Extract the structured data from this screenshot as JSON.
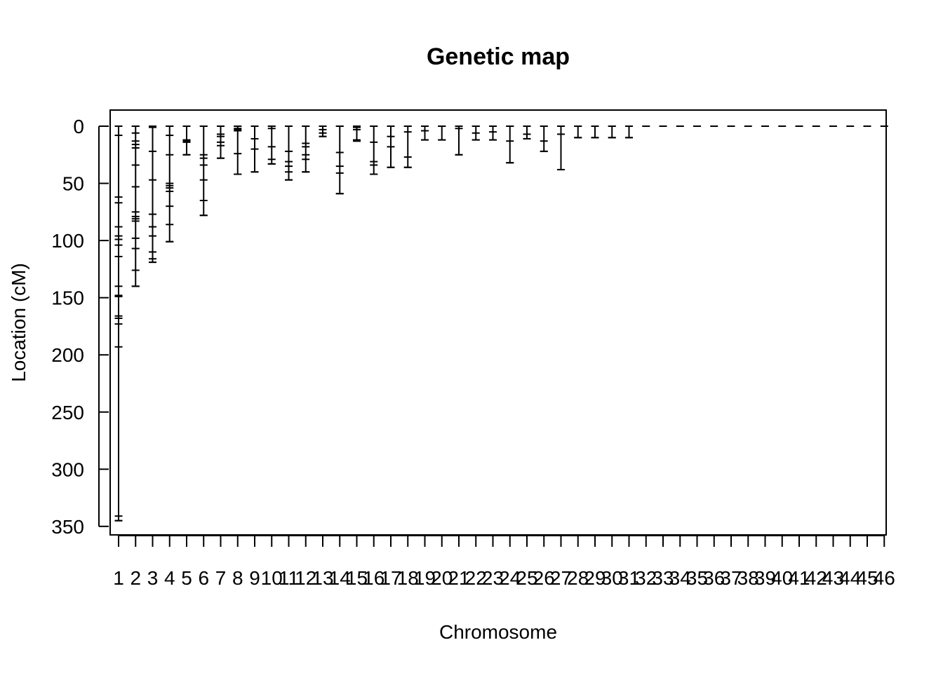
{
  "chart_data": {
    "type": "genetic-map",
    "title": "Genetic map",
    "xlabel": "Chromosome",
    "ylabel": "Location (cM)",
    "ylim": [
      0,
      360
    ],
    "y_reversed": true,
    "y_ticks": [
      0,
      50,
      100,
      150,
      200,
      250,
      300,
      350
    ],
    "chromosomes": [
      {
        "name": "1",
        "markers": [
          0,
          8,
          62,
          67,
          88,
          96,
          99,
          104,
          114,
          140,
          148,
          149,
          166,
          168,
          173,
          193,
          341,
          345
        ]
      },
      {
        "name": "2",
        "markers": [
          0,
          6,
          13,
          16,
          19,
          34,
          53,
          75,
          79,
          81,
          83,
          98,
          107,
          126,
          140
        ]
      },
      {
        "name": "3",
        "markers": [
          0,
          1,
          22,
          47,
          77,
          88,
          96,
          110,
          116,
          119
        ]
      },
      {
        "name": "4",
        "markers": [
          0,
          8,
          25,
          50,
          52,
          54,
          57,
          70,
          86,
          101
        ]
      },
      {
        "name": "5",
        "markers": [
          0,
          12,
          13,
          14,
          25
        ]
      },
      {
        "name": "6",
        "markers": [
          0,
          25,
          28,
          34,
          47,
          65,
          78
        ]
      },
      {
        "name": "7",
        "markers": [
          0,
          7,
          9,
          14,
          17,
          28
        ]
      },
      {
        "name": "8",
        "markers": [
          0,
          2,
          3,
          4,
          24,
          42
        ]
      },
      {
        "name": "9",
        "markers": [
          0,
          11,
          20,
          40
        ]
      },
      {
        "name": "10",
        "markers": [
          0,
          2,
          18,
          29,
          33
        ]
      },
      {
        "name": "11",
        "markers": [
          0,
          22,
          31,
          35,
          40,
          47
        ]
      },
      {
        "name": "12",
        "markers": [
          0,
          15,
          18,
          25,
          29,
          40
        ]
      },
      {
        "name": "13",
        "markers": [
          0,
          3,
          6,
          9
        ]
      },
      {
        "name": "14",
        "markers": [
          0,
          23,
          35,
          41,
          59
        ]
      },
      {
        "name": "15",
        "markers": [
          0,
          1,
          3,
          12,
          13
        ]
      },
      {
        "name": "16",
        "markers": [
          0,
          14,
          31,
          34,
          42
        ]
      },
      {
        "name": "17",
        "markers": [
          0,
          9,
          18,
          36
        ]
      },
      {
        "name": "18",
        "markers": [
          0,
          5,
          27,
          36
        ]
      },
      {
        "name": "19",
        "markers": [
          0,
          4,
          12
        ]
      },
      {
        "name": "20",
        "markers": [
          0,
          12
        ]
      },
      {
        "name": "21",
        "markers": [
          0,
          2,
          25
        ]
      },
      {
        "name": "22",
        "markers": [
          0,
          6,
          12
        ]
      },
      {
        "name": "23",
        "markers": [
          0,
          5,
          12
        ]
      },
      {
        "name": "24",
        "markers": [
          0,
          13,
          32
        ]
      },
      {
        "name": "25",
        "markers": [
          0,
          7,
          11
        ]
      },
      {
        "name": "26",
        "markers": [
          0,
          13,
          22
        ]
      },
      {
        "name": "27",
        "markers": [
          0,
          7,
          38
        ]
      },
      {
        "name": "28",
        "markers": [
          0,
          10
        ]
      },
      {
        "name": "29",
        "markers": [
          0,
          10
        ]
      },
      {
        "name": "30",
        "markers": [
          0,
          10
        ]
      },
      {
        "name": "31",
        "markers": [
          0,
          10
        ]
      },
      {
        "name": "32",
        "markers": [
          0
        ]
      },
      {
        "name": "33",
        "markers": [
          0
        ]
      },
      {
        "name": "34",
        "markers": [
          0
        ]
      },
      {
        "name": "35",
        "markers": [
          0
        ]
      },
      {
        "name": "36",
        "markers": [
          0
        ]
      },
      {
        "name": "37",
        "markers": [
          0
        ]
      },
      {
        "name": "38",
        "markers": [
          0
        ]
      },
      {
        "name": "39",
        "markers": [
          0
        ]
      },
      {
        "name": "40",
        "markers": [
          0
        ]
      },
      {
        "name": "41",
        "markers": [
          0
        ]
      },
      {
        "name": "42",
        "markers": [
          0
        ]
      },
      {
        "name": "43",
        "markers": [
          0
        ]
      },
      {
        "name": "44",
        "markers": [
          0
        ]
      },
      {
        "name": "45",
        "markers": [
          0
        ]
      },
      {
        "name": "46",
        "markers": [
          0
        ]
      }
    ],
    "grid": false,
    "legend": "none"
  }
}
